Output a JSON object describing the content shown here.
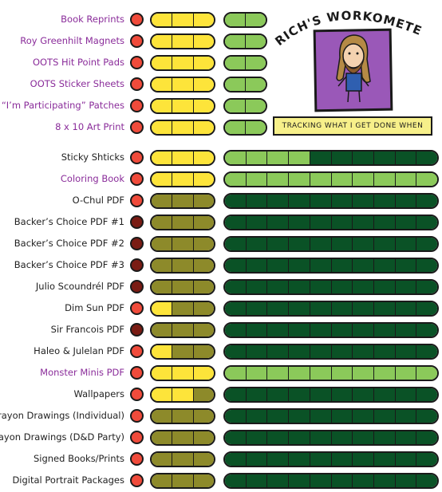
{
  "header": {
    "title": "RICH'S WORKOMETER!",
    "caption": "TRACKING WHAT I GET DONE WHEN"
  },
  "colors": {
    "dot_red": "#f04b3b",
    "dot_dark": "#7a1c14",
    "yellow": "#fde43a",
    "olive": "#8d8a2a",
    "light_green": "#8bc95a",
    "dark_green": "#0a5226",
    "purple_label": "#8a2c9a"
  },
  "rows": [
    {
      "label": "Book Reprints",
      "purple": true,
      "dot": "red",
      "stage1": [
        "y",
        "y",
        "y"
      ],
      "stage2": [
        "l",
        "l"
      ]
    },
    {
      "label": "Roy Greenhilt Magnets",
      "purple": true,
      "dot": "red",
      "stage1": [
        "y",
        "y",
        "y"
      ],
      "stage2": [
        "l",
        "l"
      ]
    },
    {
      "label": "OOTS Hit Point Pads",
      "purple": true,
      "dot": "red",
      "stage1": [
        "y",
        "y",
        "y"
      ],
      "stage2": [
        "l",
        "l"
      ]
    },
    {
      "label": "OOTS Sticker Sheets",
      "purple": true,
      "dot": "red",
      "stage1": [
        "y",
        "y",
        "y"
      ],
      "stage2": [
        "l",
        "l"
      ]
    },
    {
      "label": "“I’m Participating” Patches",
      "purple": true,
      "dot": "red",
      "stage1": [
        "y",
        "y",
        "y"
      ],
      "stage2": [
        "l",
        "l"
      ]
    },
    {
      "label": "8 x 10 Art Print",
      "purple": true,
      "dot": "red",
      "stage1": [
        "y",
        "y",
        "y"
      ],
      "stage2": [
        "l",
        "l"
      ]
    },
    {
      "label": "Sticky Shticks",
      "purple": false,
      "dot": "red",
      "stage1": [
        "y",
        "y",
        "y"
      ],
      "stage2": [
        "l",
        "l",
        "l",
        "l",
        "d",
        "d",
        "d",
        "d",
        "d",
        "d"
      ]
    },
    {
      "label": "Coloring Book",
      "purple": true,
      "dot": "red",
      "stage1": [
        "y",
        "y",
        "y"
      ],
      "stage2": [
        "l",
        "l",
        "l",
        "l",
        "l",
        "l",
        "l",
        "l",
        "l",
        "l"
      ]
    },
    {
      "label": "O-Chul PDF",
      "purple": false,
      "dot": "red",
      "stage1": [
        "o",
        "o",
        "o"
      ],
      "stage2": [
        "d",
        "d",
        "d",
        "d",
        "d",
        "d",
        "d",
        "d",
        "d",
        "d"
      ]
    },
    {
      "label": "Backer’s Choice PDF #1",
      "purple": false,
      "dot": "dark",
      "stage1": [
        "o",
        "o",
        "o"
      ],
      "stage2": [
        "d",
        "d",
        "d",
        "d",
        "d",
        "d",
        "d",
        "d",
        "d",
        "d"
      ]
    },
    {
      "label": "Backer’s Choice PDF #2",
      "purple": false,
      "dot": "dark",
      "stage1": [
        "o",
        "o",
        "o"
      ],
      "stage2": [
        "d",
        "d",
        "d",
        "d",
        "d",
        "d",
        "d",
        "d",
        "d",
        "d"
      ]
    },
    {
      "label": "Backer’s Choice PDF #3",
      "purple": false,
      "dot": "dark",
      "stage1": [
        "o",
        "o",
        "o"
      ],
      "stage2": [
        "d",
        "d",
        "d",
        "d",
        "d",
        "d",
        "d",
        "d",
        "d",
        "d"
      ]
    },
    {
      "label": "Julio Scoundrél PDF",
      "purple": false,
      "dot": "dark",
      "stage1": [
        "o",
        "o",
        "o"
      ],
      "stage2": [
        "d",
        "d",
        "d",
        "d",
        "d",
        "d",
        "d",
        "d",
        "d",
        "d"
      ]
    },
    {
      "label": "Dim Sun PDF",
      "purple": false,
      "dot": "red",
      "stage1": [
        "y",
        "o",
        "o"
      ],
      "stage2": [
        "d",
        "d",
        "d",
        "d",
        "d",
        "d",
        "d",
        "d",
        "d",
        "d"
      ]
    },
    {
      "label": "Sir Francois  PDF",
      "purple": false,
      "dot": "dark",
      "stage1": [
        "o",
        "o",
        "o"
      ],
      "stage2": [
        "d",
        "d",
        "d",
        "d",
        "d",
        "d",
        "d",
        "d",
        "d",
        "d"
      ]
    },
    {
      "label": "Haleo & Julelan PDF",
      "purple": false,
      "dot": "red",
      "stage1": [
        "y",
        "o",
        "o"
      ],
      "stage2": [
        "d",
        "d",
        "d",
        "d",
        "d",
        "d",
        "d",
        "d",
        "d",
        "d"
      ]
    },
    {
      "label": "Monster Minis PDF",
      "purple": true,
      "dot": "red",
      "stage1": [
        "y",
        "y",
        "y"
      ],
      "stage2": [
        "l",
        "l",
        "l",
        "l",
        "l",
        "l",
        "l",
        "l",
        "l",
        "l"
      ]
    },
    {
      "label": "Wallpapers",
      "purple": false,
      "dot": "red",
      "stage1": [
        "y",
        "y",
        "o"
      ],
      "stage2": [
        "d",
        "d",
        "d",
        "d",
        "d",
        "d",
        "d",
        "d",
        "d",
        "d"
      ]
    },
    {
      "label": "Crayon Drawings (Individual)",
      "purple": false,
      "dot": "red",
      "stage1": [
        "o",
        "o",
        "o"
      ],
      "stage2": [
        "d",
        "d",
        "d",
        "d",
        "d",
        "d",
        "d",
        "d",
        "d",
        "d"
      ]
    },
    {
      "label": "Crayon Drawings (D&D Party)",
      "purple": false,
      "dot": "red",
      "stage1": [
        "o",
        "o",
        "o"
      ],
      "stage2": [
        "d",
        "d",
        "d",
        "d",
        "d",
        "d",
        "d",
        "d",
        "d",
        "d"
      ]
    },
    {
      "label": "Signed Books/Prints",
      "purple": false,
      "dot": "red",
      "stage1": [
        "o",
        "o",
        "o"
      ],
      "stage2": [
        "d",
        "d",
        "d",
        "d",
        "d",
        "d",
        "d",
        "d",
        "d",
        "d"
      ]
    },
    {
      "label": "Digital Portrait Packages",
      "purple": false,
      "dot": "red",
      "stage1": [
        "o",
        "o",
        "o"
      ],
      "stage2": [
        "d",
        "d",
        "d",
        "d",
        "d",
        "d",
        "d",
        "d",
        "d",
        "d"
      ]
    }
  ]
}
